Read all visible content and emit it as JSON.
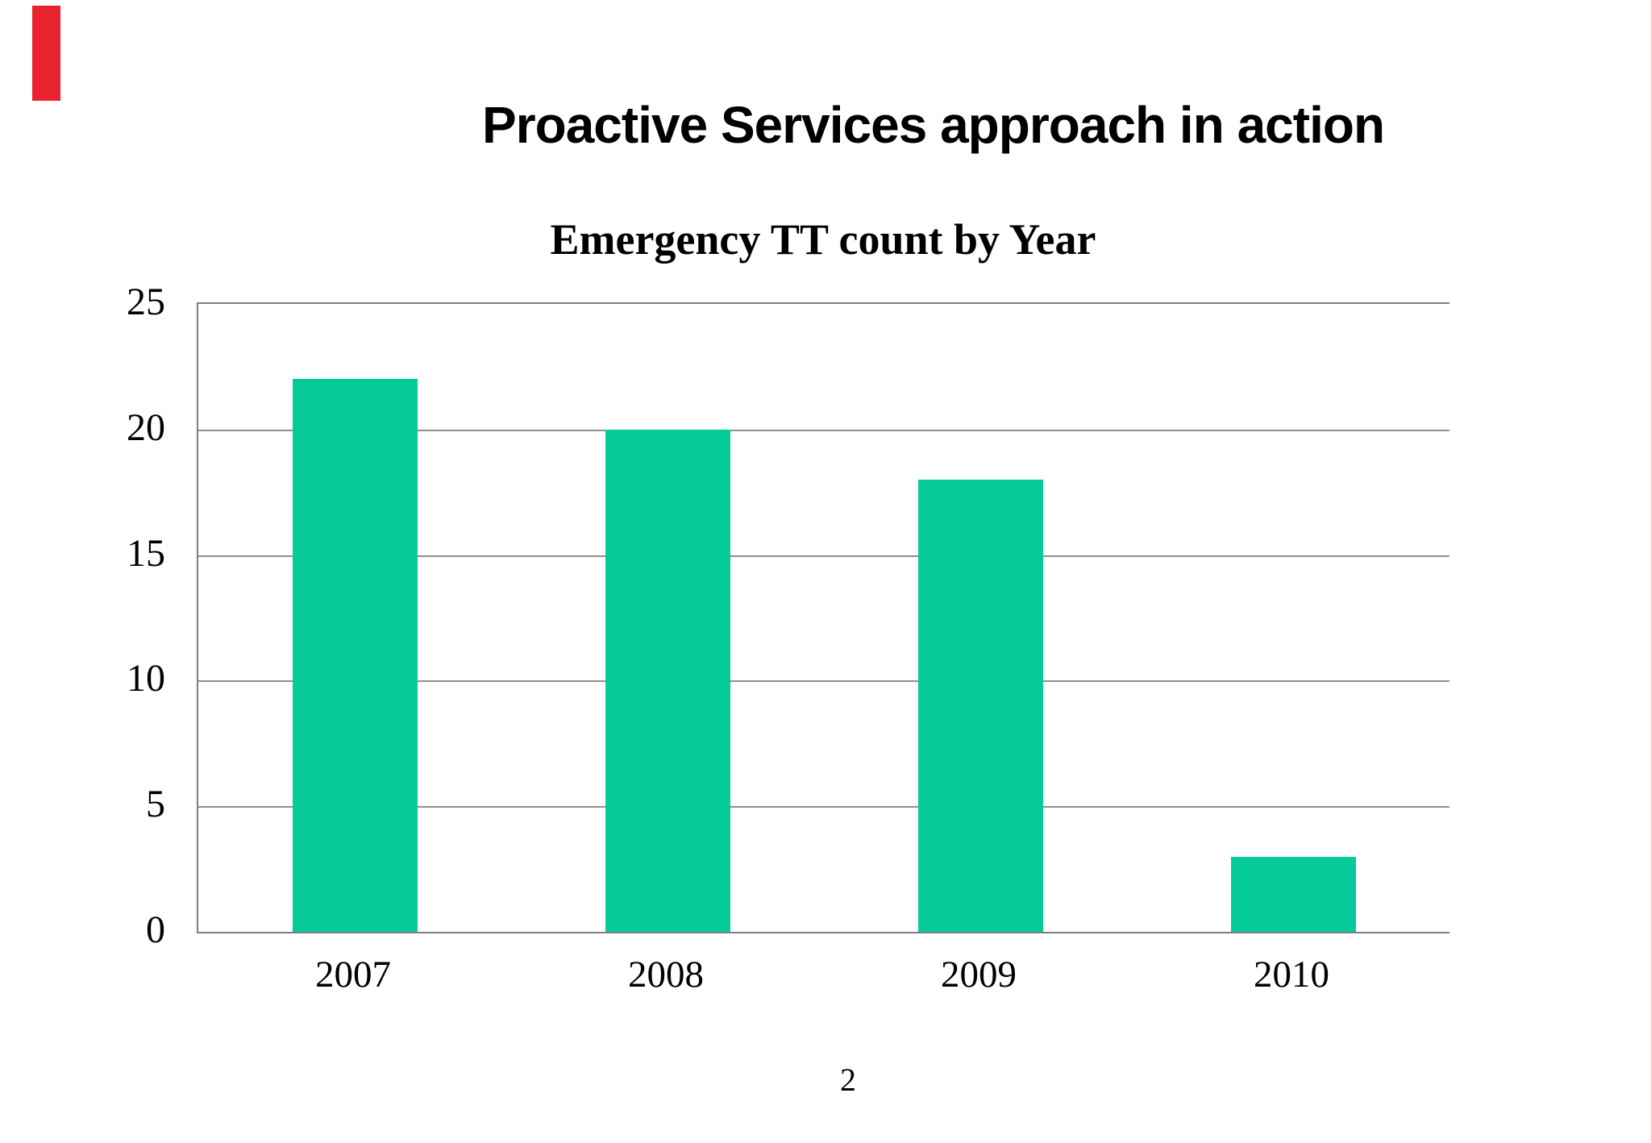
{
  "slide": {
    "title": "Proactive Services approach in action",
    "page_number": "2",
    "accent_bar_color": "#e8232d"
  },
  "chart_data": {
    "type": "bar",
    "title": "Emergency TT count by Year",
    "categories": [
      "2007",
      "2008",
      "2009",
      "2010"
    ],
    "values": [
      22,
      20,
      18,
      3
    ],
    "xlabel": "",
    "ylabel": "",
    "ylim": [
      0,
      25
    ],
    "y_ticks": [
      0,
      5,
      10,
      15,
      20,
      25
    ],
    "grid": "horizontal",
    "legend": "none",
    "bar_color": "#05cb9a",
    "grid_color": "#8e8e8e",
    "axis_color": "#7d7d7d"
  }
}
